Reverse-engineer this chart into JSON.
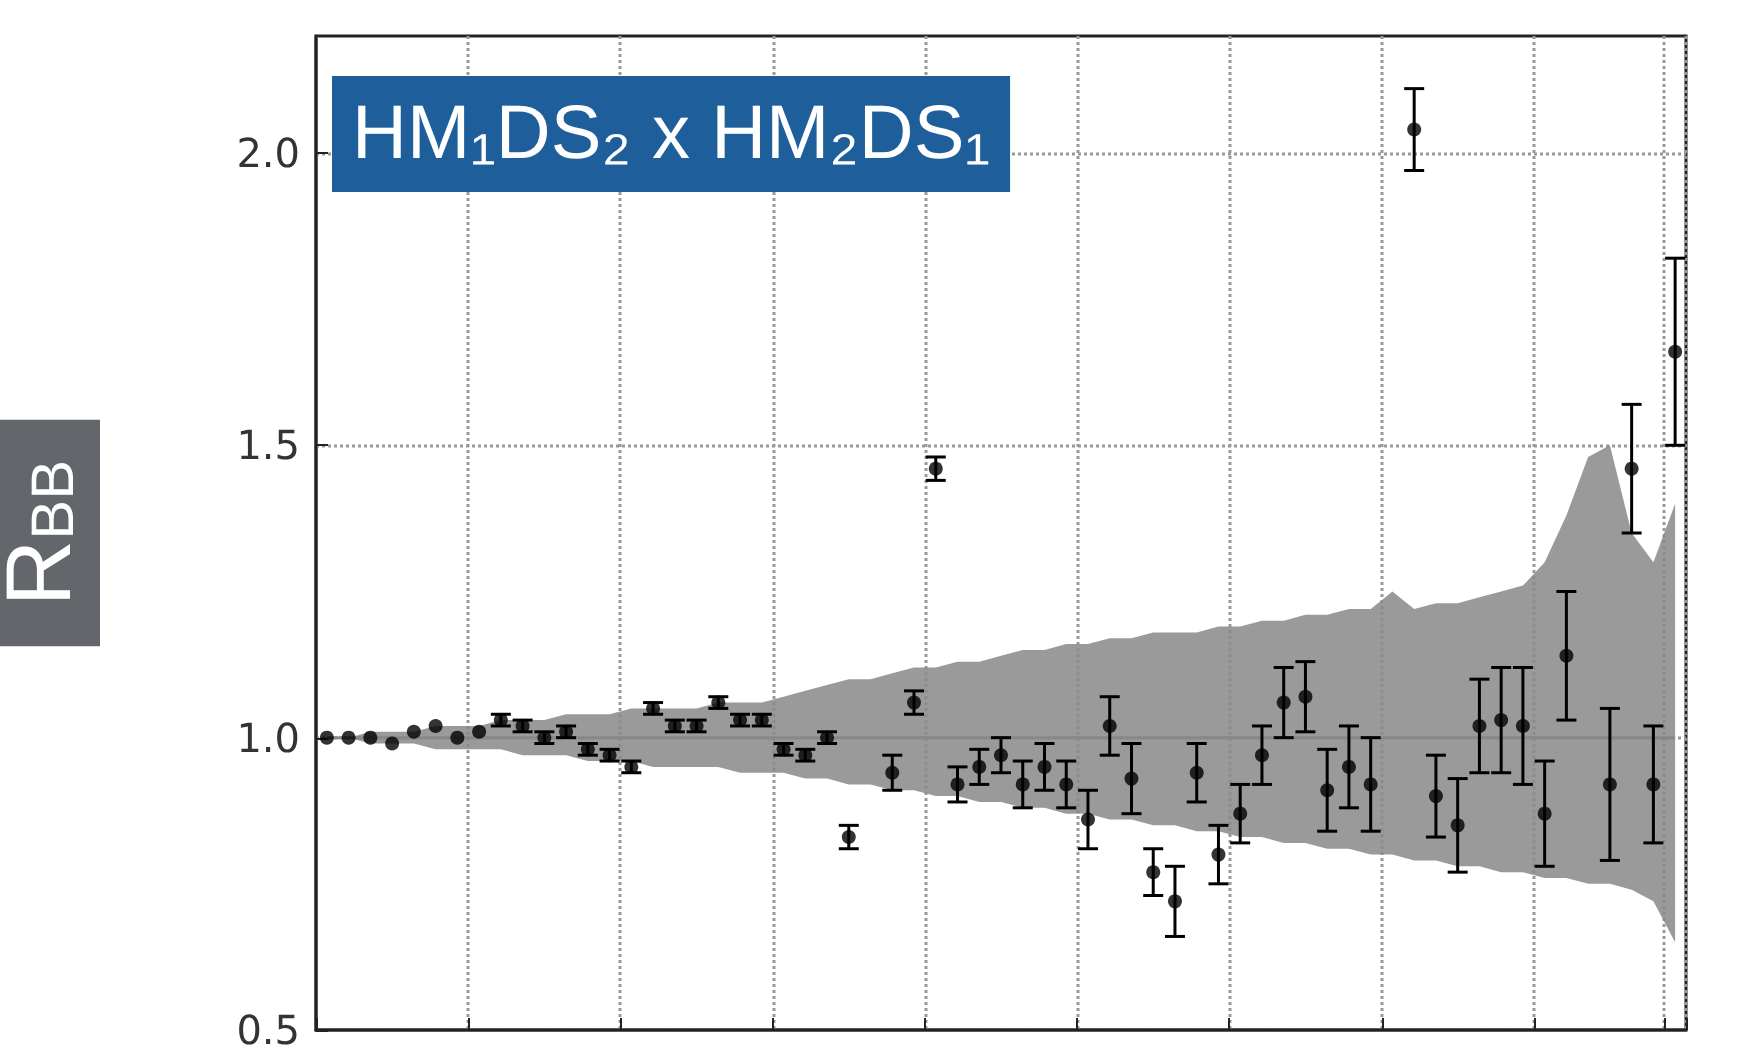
{
  "chart_data": {
    "type": "scatter",
    "title": "HM₁DS₂ x HM₂DS₁",
    "ylabel": "R$_{BB}$",
    "categories": [
      null,
      null,
      null,
      null,
      null,
      null,
      null,
      null,
      null,
      null,
      null,
      null,
      null,
      null,
      null,
      null,
      null,
      null,
      null,
      null,
      null,
      null,
      null,
      null,
      null,
      null,
      null,
      null,
      null,
      null,
      null,
      null,
      null,
      null,
      null,
      null,
      null,
      null,
      null,
      null,
      null,
      null,
      null,
      null,
      null,
      null,
      null,
      null,
      null,
      null,
      null,
      null,
      null,
      null,
      null,
      null,
      null,
      null,
      null,
      null,
      null,
      null,
      null
    ],
    "ylim": [
      0.5,
      2.2
    ],
    "yticks": [
      {
        "value": 0.5,
        "label": "0.5"
      },
      {
        "value": 1,
        "label": "1.0"
      },
      {
        "value": 1.5,
        "label": "1.5"
      },
      {
        "value": 2,
        "label": "2.0"
      }
    ],
    "grid": true,
    "marker": "circle",
    "series": [
      {
        "type": "line",
        "marker": "none",
        "color": "#888888",
        "values": [
          1,
          1,
          1,
          1,
          1,
          1,
          1,
          1,
          1,
          1,
          1,
          1,
          1,
          1,
          1,
          1,
          1,
          1,
          1,
          1,
          1,
          1,
          1,
          1,
          1,
          1,
          1,
          1,
          1,
          1,
          1,
          1,
          1,
          1,
          1,
          1,
          1,
          1,
          1,
          1,
          1,
          1,
          1,
          1,
          1,
          1,
          1,
          1,
          1,
          1,
          1,
          1,
          1,
          1,
          1,
          1,
          1,
          1,
          1,
          1,
          1,
          1,
          1
        ],
        "upper": [
          1.0,
          1.0,
          1.01,
          1.01,
          1.01,
          1.02,
          1.02,
          1.02,
          1.03,
          1.03,
          1.03,
          1.04,
          1.04,
          1.04,
          1.05,
          1.05,
          1.05,
          1.05,
          1.06,
          1.06,
          1.06,
          1.07,
          1.08,
          1.09,
          1.1,
          1.1,
          1.11,
          1.12,
          1.12,
          1.13,
          1.13,
          1.14,
          1.15,
          1.15,
          1.16,
          1.16,
          1.17,
          1.17,
          1.18,
          1.18,
          1.18,
          1.19,
          1.19,
          1.2,
          1.2,
          1.21,
          1.21,
          1.22,
          1.22,
          1.25,
          1.22,
          1.23,
          1.23,
          1.24,
          1.25,
          1.26,
          1.3,
          1.38,
          1.48,
          1.5,
          1.35,
          1.3,
          1.4
        ],
        "lower": [
          1.0,
          1.0,
          0.99,
          0.99,
          0.99,
          0.98,
          0.98,
          0.98,
          0.98,
          0.97,
          0.97,
          0.97,
          0.96,
          0.96,
          0.96,
          0.95,
          0.95,
          0.95,
          0.95,
          0.94,
          0.94,
          0.94,
          0.93,
          0.93,
          0.92,
          0.92,
          0.91,
          0.91,
          0.9,
          0.9,
          0.89,
          0.89,
          0.88,
          0.88,
          0.87,
          0.87,
          0.86,
          0.86,
          0.85,
          0.85,
          0.84,
          0.84,
          0.83,
          0.83,
          0.82,
          0.82,
          0.81,
          0.81,
          0.8,
          0.8,
          0.79,
          0.79,
          0.78,
          0.78,
          0.77,
          0.77,
          0.76,
          0.76,
          0.75,
          0.75,
          0.74,
          0.72,
          0.65
        ]
      },
      {
        "color": "#000000",
        "values": [
          1.0,
          1.0,
          1.0,
          0.99,
          1.01,
          1.02,
          1.0,
          1.01,
          1.03,
          1.02,
          1.0,
          1.01,
          0.98,
          0.97,
          0.95,
          1.05,
          1.02,
          1.02,
          1.06,
          1.03,
          1.03,
          0.98,
          0.97,
          1.0,
          0.83,
          null,
          0.94,
          1.06,
          1.46,
          0.92,
          0.95,
          0.97,
          0.92,
          0.95,
          0.92,
          0.86,
          1.02,
          0.93,
          0.77,
          0.72,
          0.94,
          0.8,
          0.87,
          0.97,
          1.06,
          1.07,
          0.91,
          0.95,
          0.92,
          null,
          2.04,
          0.9,
          0.85,
          1.02,
          1.03,
          1.02,
          0.87,
          1.14,
          null,
          0.92,
          1.46,
          0.92,
          1.66
        ],
        "errors": [
          null,
          null,
          null,
          null,
          null,
          null,
          null,
          null,
          0.01,
          0.01,
          0.01,
          0.01,
          0.01,
          0.01,
          0.01,
          0.01,
          0.01,
          0.01,
          0.01,
          0.01,
          0.01,
          0.01,
          0.01,
          0.01,
          0.02,
          null,
          0.03,
          0.02,
          0.02,
          0.03,
          0.03,
          0.03,
          0.04,
          0.04,
          0.04,
          0.05,
          0.05,
          0.06,
          0.04,
          0.06,
          0.05,
          0.05,
          0.05,
          0.05,
          0.06,
          0.06,
          0.07,
          0.07,
          0.08,
          null,
          0.07,
          0.07,
          0.08,
          0.08,
          0.09,
          0.1,
          0.09,
          0.11,
          null,
          0.13,
          0.11,
          0.1,
          0.16
        ]
      }
    ]
  }
}
